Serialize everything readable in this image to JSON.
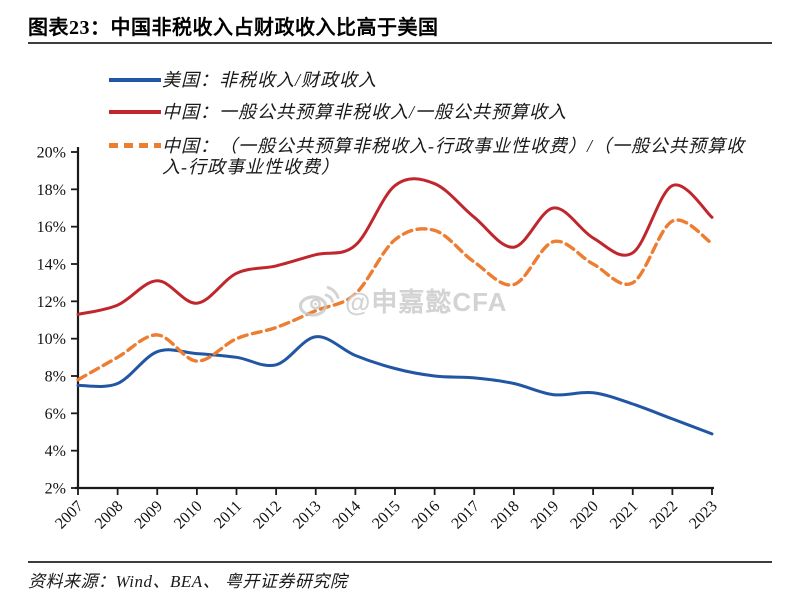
{
  "page": {
    "title": "图表23：中国非税收入占财政收入比高于美国",
    "source": "资料来源：Wind、BEA、 粤开证券研究院",
    "watermark": "@申嘉懿CFA"
  },
  "colors": {
    "axis": "#1a1a1a",
    "rule": "#3d3d3d",
    "us_blue": "#2156A5",
    "china_red": "#C0272D",
    "china_adj_orange": "#ED7D31",
    "watermark_gray": "#c9c9c9"
  },
  "chart_data": {
    "type": "line",
    "title": "中国非税收入占财政收入比高于美国",
    "x": [
      "2007",
      "2008",
      "2009",
      "2010",
      "2011",
      "2012",
      "2013",
      "2014",
      "2015",
      "2016",
      "2017",
      "2018",
      "2019",
      "2020",
      "2021",
      "2022",
      "2023"
    ],
    "series": [
      {
        "name": "美国：非税收入/财政收入",
        "color": "#2156A5",
        "style": "solid",
        "values": [
          7.5,
          7.6,
          9.3,
          9.2,
          9.0,
          8.6,
          10.1,
          9.1,
          8.4,
          8.0,
          7.9,
          7.6,
          7.0,
          7.1,
          6.5,
          5.7,
          4.9
        ]
      },
      {
        "name": "中国：一般公共预算非税收入/一般公共预算收入",
        "color": "#C0272D",
        "style": "solid",
        "values": [
          11.3,
          11.8,
          13.1,
          11.9,
          13.5,
          13.9,
          14.5,
          15.0,
          18.2,
          18.3,
          16.5,
          14.9,
          17.0,
          15.4,
          14.6,
          18.2,
          16.5
        ]
      },
      {
        "name": "中国：（一般公共预算非税收入-行政事业性收费）/（一般公共预算收入-行政事业性收费）",
        "color": "#ED7D31",
        "style": "dashed",
        "values": [
          7.8,
          9.0,
          10.2,
          8.8,
          10.0,
          10.6,
          11.5,
          12.4,
          15.3,
          15.8,
          14.1,
          12.9,
          15.2,
          14.0,
          13.0,
          16.3,
          15.1
        ]
      }
    ],
    "ylim": [
      2,
      20
    ],
    "ytick_step": 2,
    "ytick_suffix": "%",
    "grid": false,
    "legend_position": "top-left",
    "x_label_rotation": -45
  }
}
